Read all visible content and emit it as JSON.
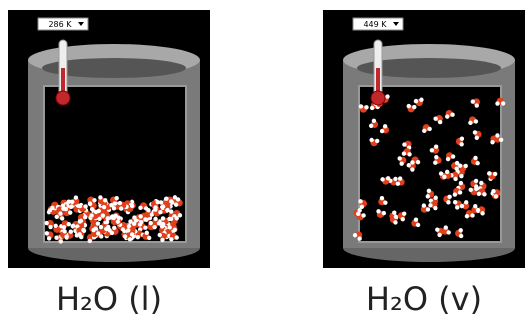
{
  "panels": [
    {
      "temperature": "286 K",
      "label": "H₂O (l)"
    },
    {
      "temperature": "449 K",
      "label": "H₂O (v)"
    }
  ]
}
